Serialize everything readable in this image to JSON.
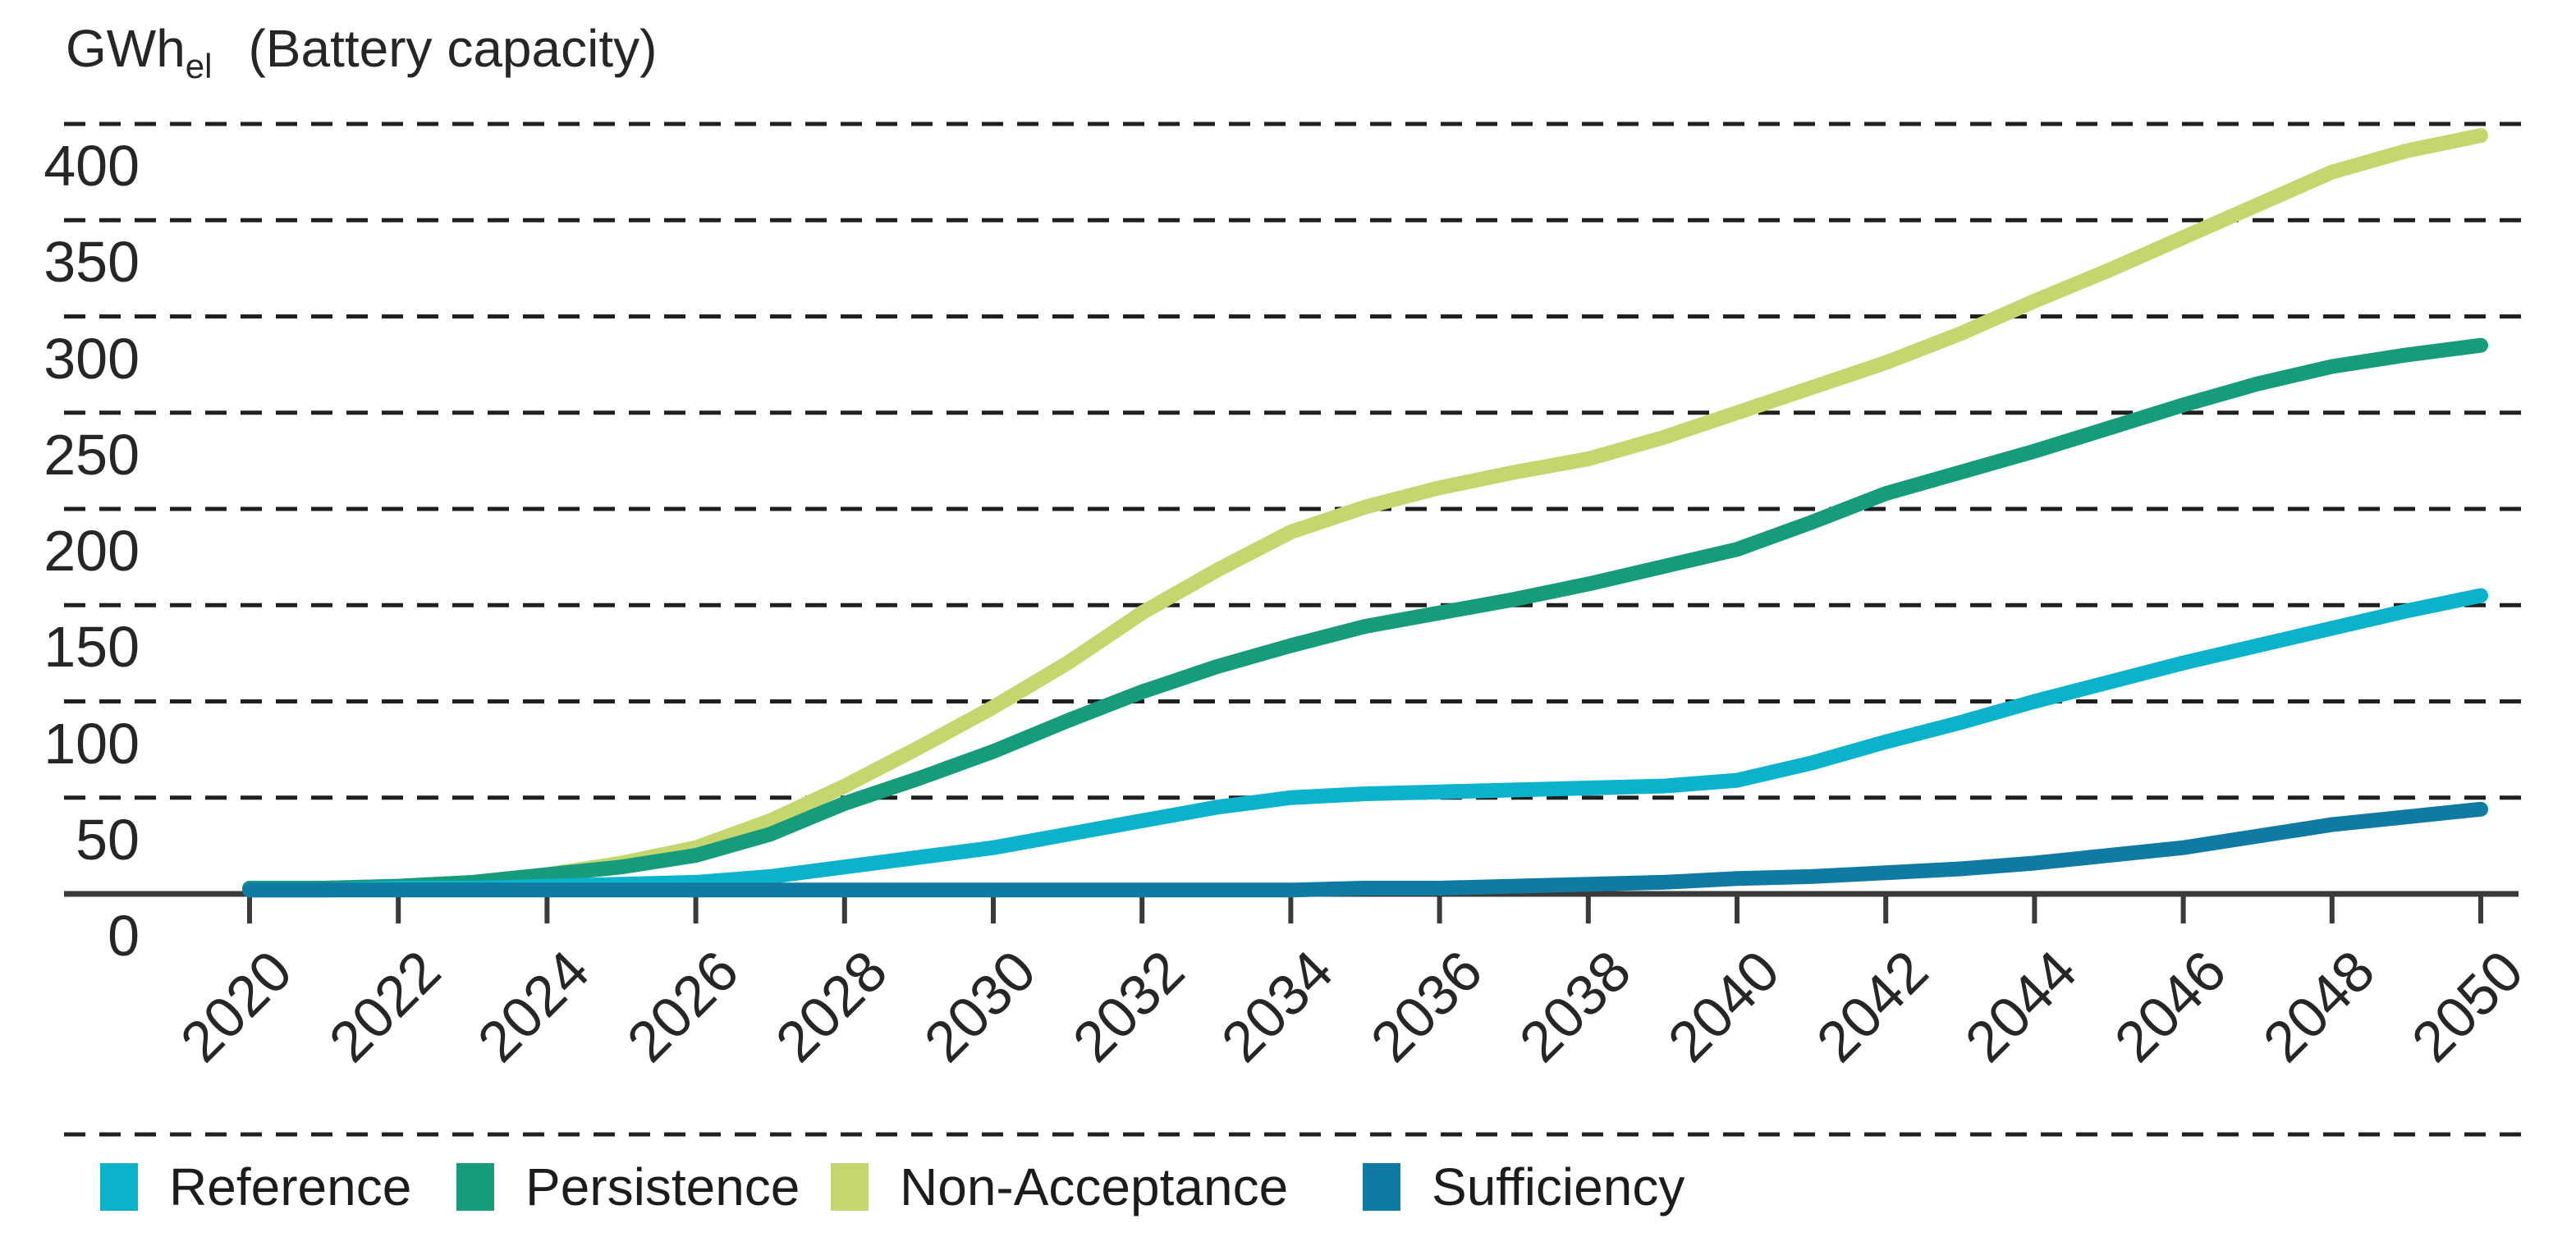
{
  "title": {
    "unit": "GWh",
    "unit_subscript": "el",
    "label": "(Battery capacity)"
  },
  "chart_data": {
    "type": "line",
    "title": "GWh_el (Battery capacity)",
    "xlabel": "",
    "ylabel": "GWh_el (Battery capacity)",
    "x": [
      2020,
      2021,
      2022,
      2023,
      2024,
      2025,
      2026,
      2027,
      2028,
      2029,
      2030,
      2031,
      2032,
      2033,
      2034,
      2035,
      2036,
      2037,
      2038,
      2039,
      2040,
      2041,
      2042,
      2043,
      2044,
      2045,
      2046,
      2047,
      2048,
      2049,
      2050
    ],
    "x_tick_labels": [
      "2020",
      "2022",
      "2024",
      "2026",
      "2028",
      "2030",
      "2032",
      "2034",
      "2036",
      "2038",
      "2040",
      "2042",
      "2044",
      "2046",
      "2048",
      "2050"
    ],
    "y_ticks": [
      400,
      350,
      300,
      250,
      200,
      150,
      100,
      50,
      0
    ],
    "ylim": [
      0,
      430
    ],
    "xlim": [
      2020,
      2050
    ],
    "grid": "horizontal-dashed",
    "legend_position": "bottom",
    "series": [
      {
        "name": "Reference",
        "color": "#0AB2CB",
        "values": [
          2,
          2,
          3,
          3,
          4,
          5,
          6,
          9,
          14,
          19,
          24,
          31,
          38,
          45,
          50,
          52,
          53,
          54,
          55,
          56,
          59,
          68,
          79,
          89,
          100,
          110,
          120,
          129,
          138,
          147,
          155
        ]
      },
      {
        "name": "Persistence",
        "color": "#169C7D",
        "values": [
          3,
          3,
          4,
          6,
          10,
          14,
          20,
          31,
          47,
          60,
          74,
          90,
          105,
          118,
          129,
          139,
          146,
          153,
          161,
          170,
          179,
          193,
          208,
          219,
          230,
          242,
          254,
          265,
          274,
          280,
          285
        ]
      },
      {
        "name": "Non-Acceptance",
        "color": "#C4D76E",
        "values": [
          3,
          3,
          4,
          6,
          10,
          16,
          24,
          38,
          56,
          76,
          97,
          120,
          146,
          168,
          188,
          201,
          211,
          219,
          226,
          237,
          250,
          263,
          276,
          291,
          308,
          324,
          341,
          358,
          375,
          386,
          394
        ]
      },
      {
        "name": "Sufficiency",
        "color": "#0F7AA2",
        "values": [
          2,
          2,
          2,
          2,
          2,
          2,
          2,
          2,
          2,
          2,
          2,
          2,
          2,
          2,
          2,
          3,
          3,
          4,
          5,
          6,
          8,
          9,
          11,
          13,
          16,
          20,
          24,
          30,
          36,
          40,
          44
        ]
      }
    ]
  },
  "legend": {
    "items": [
      "Reference",
      "Persistence",
      "Non-Acceptance",
      "Sufficiency"
    ]
  }
}
